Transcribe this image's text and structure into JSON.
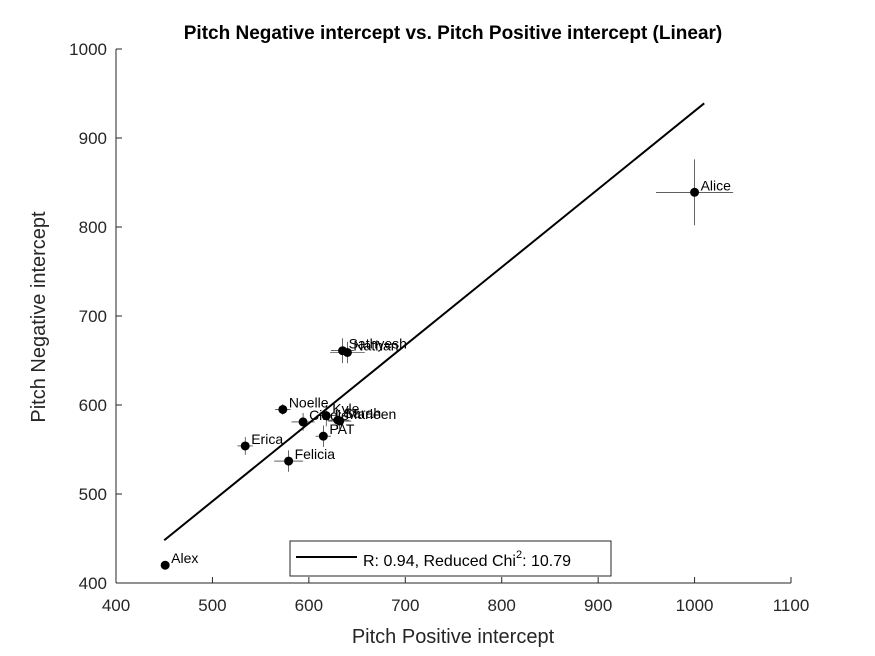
{
  "chart_data": {
    "type": "scatter",
    "title": "Pitch Negative intercept vs. Pitch Positive intercept (Linear)",
    "xlabel": "Pitch Positive intercept",
    "ylabel": "Pitch Negative intercept",
    "xlim": [
      400,
      1100
    ],
    "ylim": [
      400,
      1000
    ],
    "xticks": [
      "400",
      "500",
      "600",
      "700",
      "800",
      "900",
      "1000",
      "1100"
    ],
    "yticks": [
      "400",
      "500",
      "600",
      "700",
      "800",
      "900",
      "1000"
    ],
    "grid": false,
    "points": [
      {
        "label": "Alice",
        "x": 1000,
        "y": 839,
        "xerr": 40,
        "yerr": 37
      },
      {
        "label": "Alex",
        "x": 451,
        "y": 420,
        "xerr": 0,
        "yerr": 0
      },
      {
        "label": "Erica",
        "x": 534,
        "y": 554,
        "xerr": 8,
        "yerr": 10
      },
      {
        "label": "Felicia",
        "x": 579,
        "y": 537,
        "xerr": 15,
        "yerr": 12
      },
      {
        "label": "Noelle",
        "x": 573,
        "y": 595,
        "xerr": 8,
        "yerr": 6
      },
      {
        "label": "Cindie",
        "x": 594,
        "y": 581,
        "xerr": 12,
        "yerr": 10
      },
      {
        "label": "Kyle",
        "x": 618,
        "y": 588,
        "xerr": 10,
        "yerr": 12
      },
      {
        "label": "Sarah",
        "x": 630,
        "y": 583,
        "xerr": 12,
        "yerr": 10
      },
      {
        "label": "Marleen",
        "x": 632,
        "y": 582,
        "xerr": 12,
        "yerr": 10
      },
      {
        "label": "PAT",
        "x": 615,
        "y": 565,
        "xerr": 8,
        "yerr": 12
      },
      {
        "label": "Sathyesh",
        "x": 635,
        "y": 661,
        "xerr": 12,
        "yerr": 14
      },
      {
        "label": "Nathan",
        "x": 640,
        "y": 659,
        "xerr": 18,
        "yerr": 12
      }
    ],
    "fit_line": {
      "x": [
        450,
        1010
      ],
      "y": [
        448,
        939
      ]
    },
    "legend": {
      "text": "R: 0.94, Reduced Chi",
      "superscript": "2",
      "suffix": ": 10.79",
      "placement": "bottom-center"
    }
  }
}
